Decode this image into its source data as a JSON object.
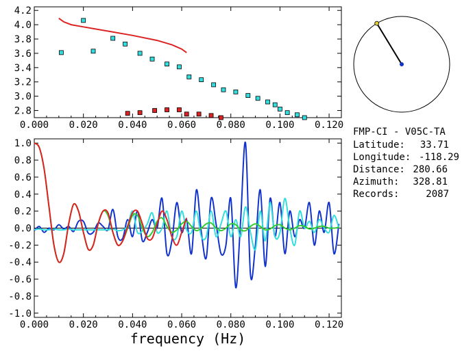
{
  "chart_data": [
    {
      "type": "scatter",
      "xlim": [
        0.0,
        0.125
      ],
      "ylim": [
        2.7,
        4.25
      ],
      "x_ticks": [
        "0.000",
        "0.020",
        "0.040",
        "0.060",
        "0.080",
        "0.100",
        "0.120"
      ],
      "y_ticks": [
        "2.8",
        "3.0",
        "3.2",
        "3.4",
        "3.6",
        "3.8",
        "4.0",
        "4.2"
      ],
      "grid": false,
      "series": [
        {
          "kind": "points",
          "color": "#33dddd",
          "points": [
            [
              0.011,
              3.61
            ],
            [
              0.02,
              4.06
            ],
            [
              0.024,
              3.63
            ],
            [
              0.032,
              3.81
            ],
            [
              0.037,
              3.73
            ],
            [
              0.043,
              3.6
            ],
            [
              0.048,
              3.52
            ],
            [
              0.054,
              3.45
            ],
            [
              0.059,
              3.41
            ],
            [
              0.063,
              3.27
            ],
            [
              0.068,
              3.23
            ],
            [
              0.073,
              3.16
            ],
            [
              0.077,
              3.09
            ],
            [
              0.082,
              3.06
            ],
            [
              0.087,
              3.01
            ],
            [
              0.091,
              2.97
            ],
            [
              0.095,
              2.92
            ],
            [
              0.098,
              2.88
            ],
            [
              0.1,
              2.82
            ],
            [
              0.103,
              2.77
            ],
            [
              0.107,
              2.74
            ],
            [
              0.11,
              2.7
            ]
          ]
        },
        {
          "kind": "points",
          "color": "#dd2222",
          "points": [
            [
              0.038,
              2.76
            ],
            [
              0.043,
              2.77
            ],
            [
              0.049,
              2.8
            ],
            [
              0.054,
              2.81
            ],
            [
              0.059,
              2.81
            ],
            [
              0.062,
              2.75
            ],
            [
              0.067,
              2.75
            ],
            [
              0.072,
              2.73
            ],
            [
              0.076,
              2.7
            ]
          ]
        },
        {
          "kind": "line",
          "color": "#dd2222",
          "points": [
            [
              0.01,
              4.09
            ],
            [
              0.012,
              4.04
            ],
            [
              0.015,
              4.0
            ],
            [
              0.02,
              3.97
            ],
            [
              0.03,
              3.91
            ],
            [
              0.04,
              3.85
            ],
            [
              0.05,
              3.78
            ],
            [
              0.056,
              3.72
            ],
            [
              0.06,
              3.66
            ],
            [
              0.062,
              3.61
            ]
          ]
        }
      ]
    },
    {
      "type": "line",
      "xlabel": "frequency (Hz)",
      "xlim": [
        0.0,
        0.125
      ],
      "ylim": [
        -1.05,
        1.05
      ],
      "x_ticks": [
        "0.000",
        "0.020",
        "0.040",
        "0.060",
        "0.080",
        "0.100",
        "0.120"
      ],
      "y_ticks": [
        "-1.0",
        "-0.8",
        "-0.6",
        "-0.4",
        "-0.2",
        "0.0",
        "0.2",
        "0.4",
        "0.6",
        "0.8",
        "1.0"
      ],
      "grid": false,
      "zero_line": true,
      "series": [
        {
          "color": "#1133cc",
          "x": [
            0.0,
            0.002,
            0.004,
            0.006,
            0.008,
            0.01,
            0.012,
            0.014,
            0.016,
            0.018,
            0.02,
            0.022,
            0.024,
            0.026,
            0.028,
            0.03,
            0.032,
            0.034,
            0.036,
            0.038,
            0.04,
            0.042,
            0.044,
            0.046,
            0.048,
            0.05,
            0.052,
            0.054,
            0.056,
            0.058,
            0.06,
            0.062,
            0.064,
            0.066,
            0.068,
            0.07,
            0.072,
            0.074,
            0.076,
            0.078,
            0.08,
            0.082,
            0.084,
            0.086,
            0.088,
            0.09,
            0.092,
            0.094,
            0.096,
            0.098,
            0.1,
            0.102,
            0.104,
            0.106,
            0.108,
            0.11,
            0.112,
            0.114,
            0.116,
            0.118,
            0.12,
            0.122,
            0.124
          ],
          "values": [
            -0.03,
            0.02,
            -0.05,
            0.0,
            -0.02,
            0.04,
            -0.01,
            0.02,
            -0.04,
            0.08,
            0.08,
            -0.06,
            -0.05,
            0.06,
            0.02,
            -0.02,
            0.22,
            -0.1,
            -0.12,
            0.1,
            -0.1,
            0.2,
            -0.15,
            -0.05,
            0.1,
            0.0,
            0.35,
            -0.3,
            -0.15,
            0.3,
            -0.05,
            0.1,
            -0.3,
            0.45,
            -0.05,
            -0.35,
            0.35,
            0.05,
            -0.3,
            -0.2,
            0.35,
            -0.7,
            0.1,
            1.0,
            -0.55,
            -0.2,
            0.45,
            -0.45,
            0.35,
            -0.1,
            0.3,
            -0.3,
            0.2,
            -0.1,
            0.1,
            0.0,
            0.3,
            -0.2,
            0.2,
            -0.05,
            0.3,
            -0.3,
            0.05
          ]
        },
        {
          "color": "#33dddd",
          "x": [
            0.0,
            0.002,
            0.004,
            0.006,
            0.008,
            0.01,
            0.012,
            0.014,
            0.016,
            0.018,
            0.02,
            0.022,
            0.024,
            0.026,
            0.028,
            0.03,
            0.032,
            0.034,
            0.036,
            0.038,
            0.04,
            0.042,
            0.044,
            0.046,
            0.048,
            0.05,
            0.052,
            0.054,
            0.056,
            0.058,
            0.06,
            0.062,
            0.064,
            0.066,
            0.068,
            0.07,
            0.072,
            0.074,
            0.076,
            0.078,
            0.08,
            0.082,
            0.084,
            0.086,
            0.088,
            0.09,
            0.092,
            0.094,
            0.096,
            0.098,
            0.1,
            0.102,
            0.104,
            0.106,
            0.108,
            0.11,
            0.112,
            0.114,
            0.116,
            0.118,
            0.12,
            0.122,
            0.124
          ],
          "values": [
            -0.02,
            -0.01,
            -0.02,
            -0.02,
            -0.01,
            -0.02,
            -0.02,
            -0.01,
            -0.02,
            -0.02,
            -0.02,
            -0.02,
            -0.02,
            -0.02,
            -0.02,
            -0.02,
            -0.01,
            -0.03,
            -0.02,
            0.03,
            0.2,
            -0.05,
            -0.03,
            0.05,
            0.18,
            -0.05,
            0.0,
            0.2,
            -0.1,
            -0.1,
            0.2,
            -0.02,
            -0.05,
            0.2,
            -0.1,
            -0.1,
            0.2,
            -0.1,
            0.05,
            0.2,
            -0.1,
            0.1,
            -0.1,
            0.25,
            -0.05,
            -0.25,
            0.2,
            -0.15,
            0.3,
            -0.1,
            -0.05,
            0.35,
            0.0,
            -0.2,
            0.2,
            0.0,
            0.08,
            -0.05,
            0.1,
            0.0,
            -0.05,
            0.15,
            0.0
          ]
        },
        {
          "color": "#33cc33",
          "x": [
            0.0,
            0.002,
            0.004,
            0.006,
            0.008,
            0.01,
            0.012,
            0.014,
            0.016,
            0.018,
            0.02,
            0.022,
            0.024,
            0.026,
            0.028,
            0.03,
            0.032,
            0.034,
            0.036,
            0.038,
            0.04,
            0.042,
            0.044,
            0.046,
            0.048,
            0.05,
            0.052,
            0.054,
            0.056,
            0.058,
            0.06,
            0.062,
            0.064,
            0.066,
            0.068,
            0.07,
            0.072,
            0.074,
            0.076,
            0.078,
            0.08,
            0.082,
            0.084,
            0.086,
            0.088,
            0.09,
            0.092,
            0.094,
            0.096,
            0.098,
            0.1,
            0.102,
            0.104,
            0.106,
            0.108,
            0.11,
            0.112,
            0.114,
            0.116,
            0.118,
            0.12,
            0.122,
            0.124
          ],
          "values": [
            1.0,
            0.95,
            0.7,
            0.25,
            -0.2,
            -0.4,
            -0.3,
            0.05,
            0.28,
            0.2,
            -0.05,
            -0.25,
            -0.2,
            0.05,
            0.2,
            0.15,
            -0.05,
            -0.2,
            -0.15,
            0.0,
            0.15,
            0.15,
            0.0,
            -0.1,
            -0.05,
            0.08,
            0.12,
            0.02,
            -0.05,
            -0.02,
            0.05,
            0.08,
            0.02,
            -0.03,
            0.0,
            0.05,
            0.06,
            0.0,
            -0.03,
            0.0,
            0.05,
            0.04,
            -0.02,
            -0.03,
            0.02,
            0.05,
            0.02,
            -0.02,
            -0.01,
            0.03,
            0.04,
            0.0,
            -0.02,
            0.0,
            0.03,
            0.02,
            -0.01,
            0.0,
            0.02,
            0.02,
            0.0,
            0.0,
            0.01
          ]
        },
        {
          "color": "#dd2222",
          "x": [
            0.0,
            0.002,
            0.004,
            0.006,
            0.008,
            0.01,
            0.012,
            0.014,
            0.016,
            0.018,
            0.02,
            0.022,
            0.024,
            0.026,
            0.028,
            0.03,
            0.032,
            0.034,
            0.036,
            0.038,
            0.04,
            0.042,
            0.044,
            0.046,
            0.048,
            0.05,
            0.052,
            0.054,
            0.056,
            0.058,
            0.06,
            0.062
          ],
          "values": [
            1.0,
            0.95,
            0.7,
            0.25,
            -0.2,
            -0.4,
            -0.3,
            0.05,
            0.28,
            0.2,
            -0.05,
            -0.25,
            -0.2,
            0.05,
            0.2,
            0.18,
            -0.05,
            -0.2,
            -0.15,
            0.02,
            0.18,
            0.2,
            0.05,
            -0.12,
            -0.12,
            0.05,
            0.2,
            0.1,
            -0.1,
            -0.2,
            -0.05,
            0.12
          ]
        }
      ]
    }
  ],
  "compass": {
    "azimuth_deg": 328.81,
    "ring_color": "#000000",
    "needle_color": "#000000",
    "center_dot_color": "#1133cc",
    "tip_dot_color": "#ddcc33"
  },
  "station": {
    "title": "FMP-CI - V05C-TA",
    "rows": [
      {
        "label": "Latitude:",
        "value": "33.71"
      },
      {
        "label": "Longitude:",
        "value": "-118.29"
      },
      {
        "label": "Distance:",
        "value": "280.66"
      },
      {
        "label": "Azimuth:",
        "value": "328.81"
      },
      {
        "label": "Records:",
        "value": "2087"
      }
    ]
  }
}
